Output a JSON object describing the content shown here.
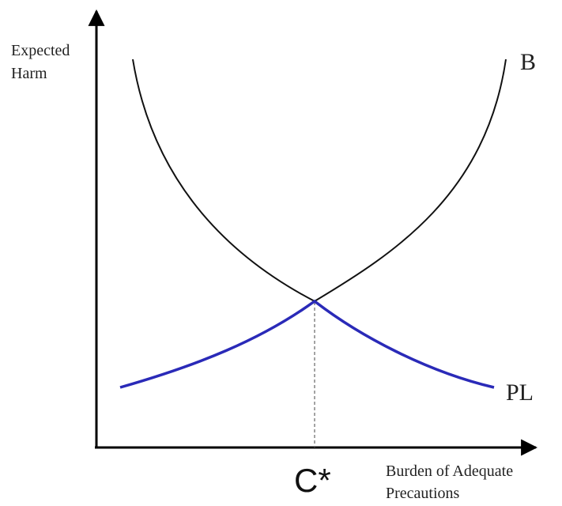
{
  "axes": {
    "y_label": [
      "Expected",
      "Harm"
    ],
    "x_label": [
      "Burden of Adequate",
      "Precautions"
    ]
  },
  "curves": {
    "burden": "B",
    "expected_loss": "PL"
  },
  "optimum": "C*"
}
